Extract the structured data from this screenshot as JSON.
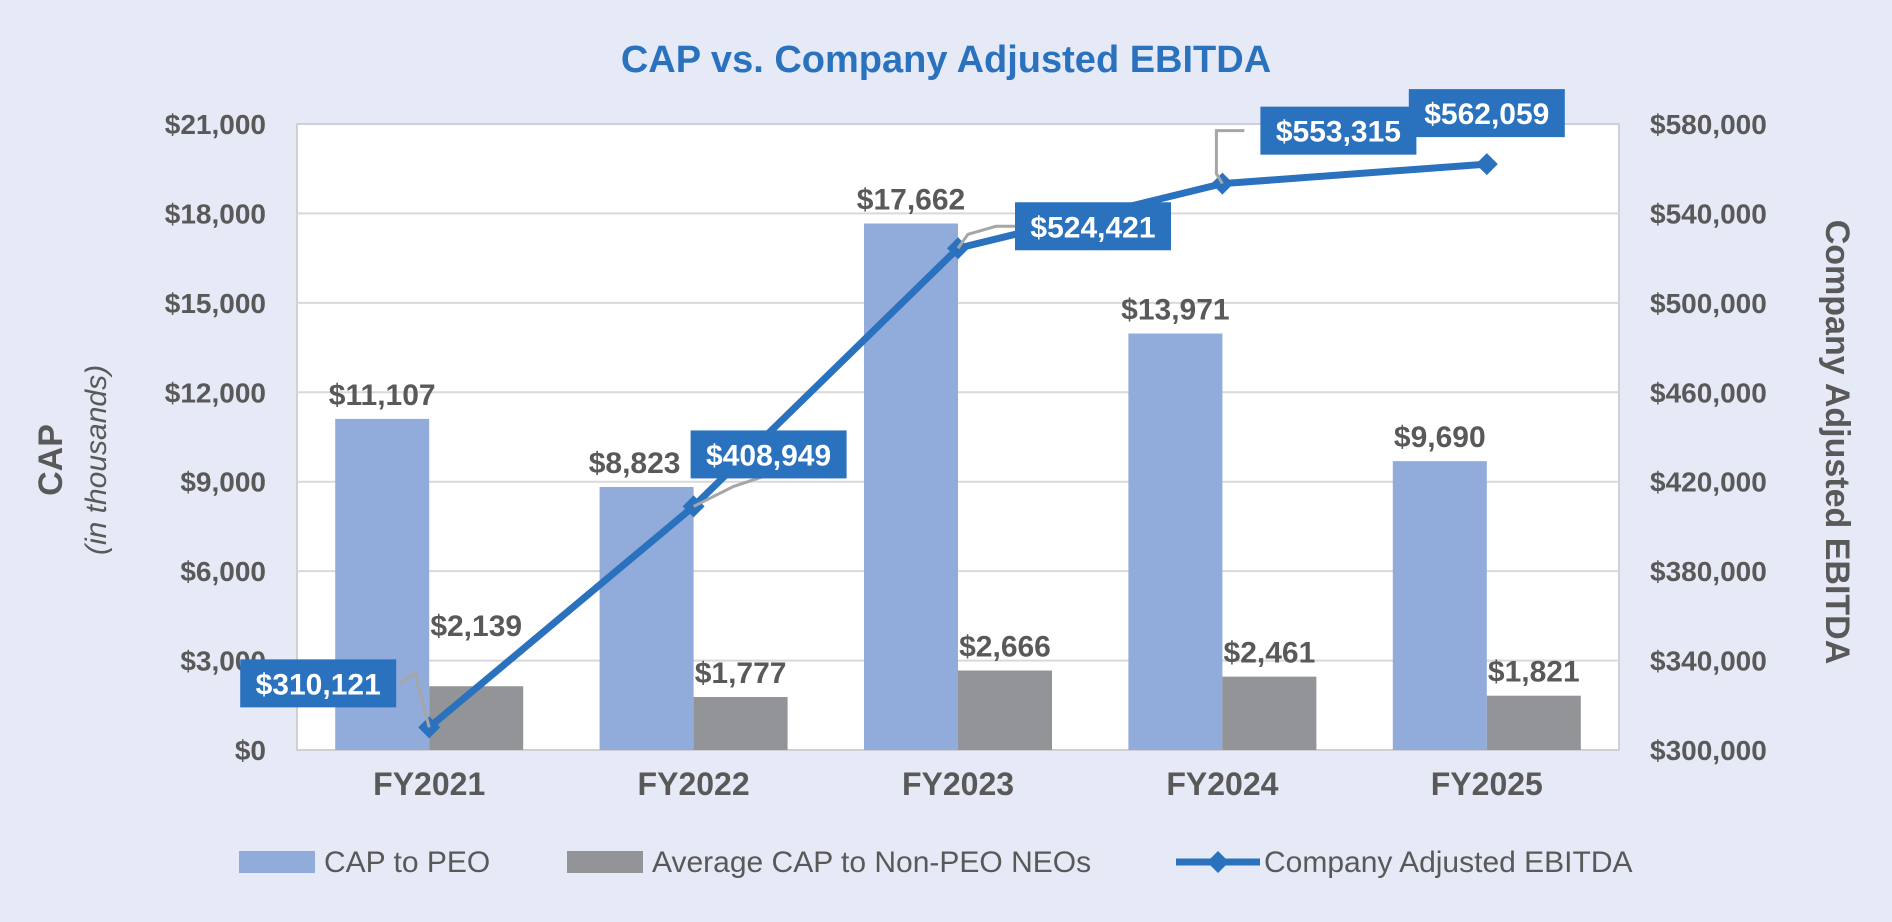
{
  "chart_data": {
    "type": "bar",
    "title": "CAP vs. Company Adjusted EBITDA",
    "categories": [
      "FY2021",
      "FY2022",
      "FY2023",
      "FY2024",
      "FY2025"
    ],
    "series": [
      {
        "name": "CAP to PEO",
        "type": "bar",
        "axis": "left",
        "color": "#91abda",
        "values": [
          11107,
          8823,
          17662,
          13971,
          9690
        ],
        "labels": [
          "$11,107",
          "$8,823",
          "$17,662",
          "$13,971",
          "$9,690"
        ]
      },
      {
        "name": "Average CAP to Non-PEO NEOs",
        "type": "bar",
        "axis": "left",
        "color": "#929497",
        "values": [
          2139,
          1777,
          2666,
          2461,
          1821
        ],
        "labels": [
          "$2,139",
          "$1,777",
          "$2,666",
          "$2,461",
          "$1,821"
        ]
      },
      {
        "name": "Company Adjusted EBITDA",
        "type": "line",
        "axis": "right",
        "color": "#2a72be",
        "marker": "diamond",
        "values": [
          310121,
          408949,
          524421,
          553315,
          562059
        ],
        "labels": [
          "$310,121",
          "$408,949",
          "$524,421",
          "$553,315",
          "$562,059"
        ]
      }
    ],
    "y_left": {
      "label": "CAP",
      "sublabel": "(in thousands)",
      "range": [
        0,
        21000
      ],
      "ticks": [
        0,
        3000,
        6000,
        9000,
        12000,
        15000,
        18000,
        21000
      ],
      "tick_labels": [
        "$0",
        "$3,000",
        "$6,000",
        "$9,000",
        "$12,000",
        "$15,000",
        "$18,000",
        "$21,000"
      ]
    },
    "y_right": {
      "label": "Company Adjusted EBITDA",
      "range": [
        300000,
        580000
      ],
      "ticks": [
        300000,
        340000,
        380000,
        420000,
        460000,
        500000,
        540000,
        580000
      ],
      "tick_labels": [
        "$300,000",
        "$340,000",
        "$380,000",
        "$420,000",
        "$460,000",
        "$500,000",
        "$540,000",
        "$580,000"
      ]
    },
    "grid": true,
    "legend": "bottom"
  },
  "colors": {
    "background": "#e6eaf6",
    "plot_background": "#ffffff",
    "title": "#2a72be",
    "text": "#595959",
    "grid": "#d9d9d9",
    "callout_box": "#2a72be",
    "callout_text": "#ffffff",
    "leader": "#a6a6a6"
  }
}
